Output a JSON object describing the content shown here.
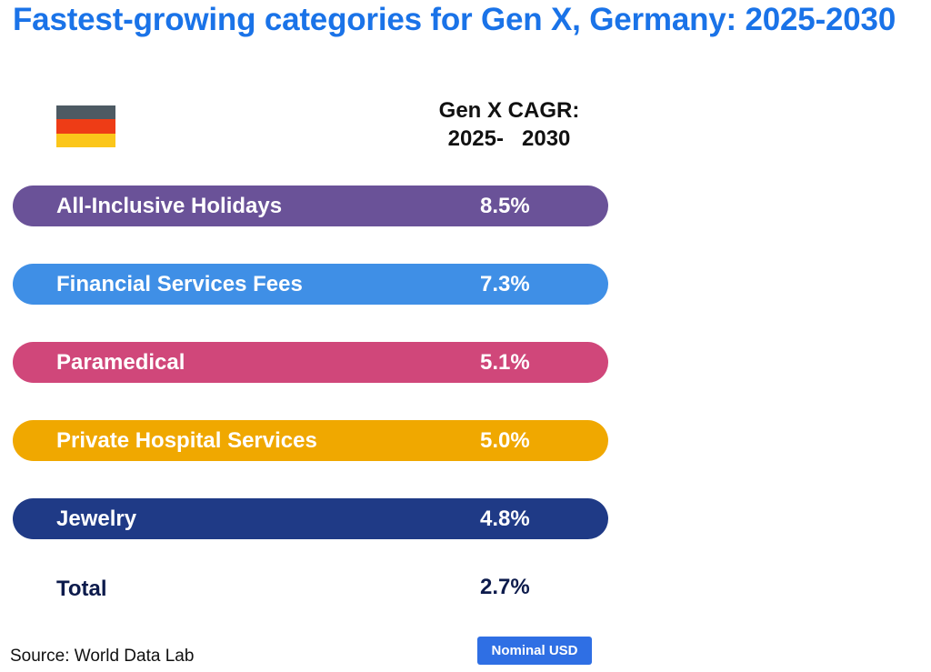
{
  "chart_data": {
    "type": "table",
    "title": "Fastest-growing categories for Gen X, Germany: 2025-2030",
    "column_header": [
      "Gen X CAGR:",
      "2025-   2030"
    ],
    "categories": [
      "All-Inclusive Holidays",
      "Financial Services Fees",
      "Paramedical",
      "Private Hospital Services",
      "Jewelry"
    ],
    "values": [
      8.5,
      7.3,
      5.1,
      5.0,
      4.8
    ],
    "value_labels": [
      "8.5%",
      "7.3%",
      "5.1%",
      "5.0%",
      "4.8%"
    ],
    "colors": [
      "#6a5298",
      "#3f8fe6",
      "#d0477a",
      "#f0a800",
      "#1f3a86"
    ],
    "total_label": "Total",
    "total_value": 2.7,
    "total_value_label": "2.7%",
    "unit": "%"
  },
  "flag": {
    "name": "germany-flag",
    "colors": [
      "#4d5a63",
      "#ee3c16",
      "#fbc61a"
    ]
  },
  "footer": {
    "source": "Source: World Data Lab",
    "badge": "Nominal USD"
  }
}
